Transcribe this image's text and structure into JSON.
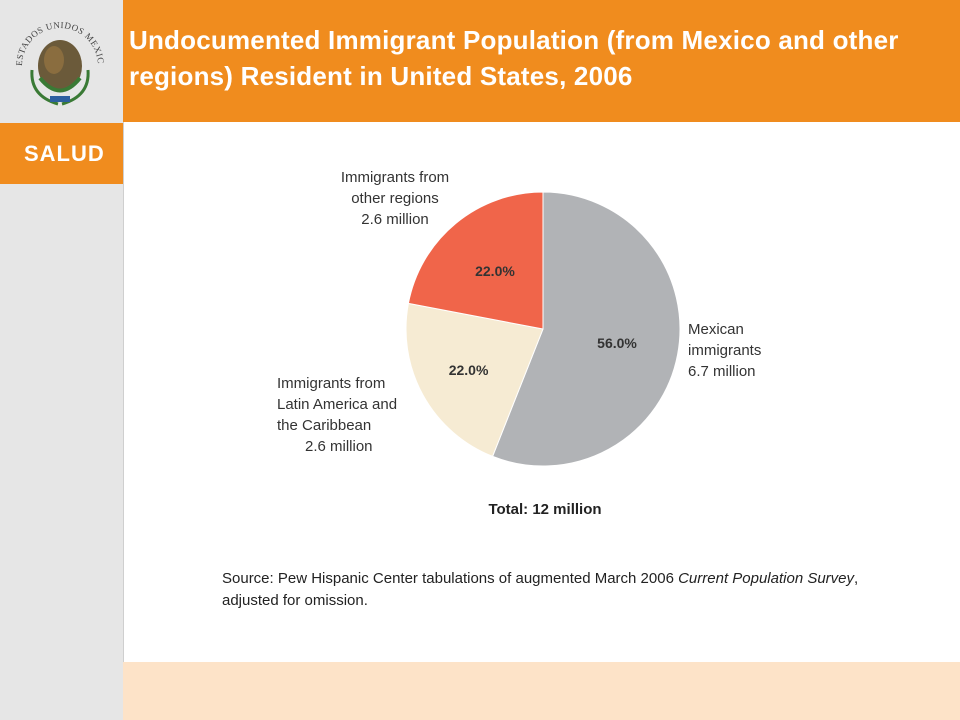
{
  "header": {
    "title": "Undocumented Immigrant Population (from Mexico and other regions) Resident in United States, 2006"
  },
  "sidebar": {
    "seal_text": "ESTADOS UNIDOS MEXICANOS",
    "section_label": "SALUD"
  },
  "colors": {
    "orange": "#f08c1e",
    "mexican": "#b1b3b6",
    "latin": "#f6ebd3",
    "other": "#f0654a",
    "footer": "#fde3c8"
  },
  "chart_data": {
    "type": "pie",
    "categories": [
      "Mexican immigrants",
      "Immigrants from Latin America and the Caribbean",
      "Immigrants from other regions"
    ],
    "values": [
      56.0,
      22.0,
      22.0
    ],
    "percent_labels": [
      "56.0%",
      "22.0%",
      "22.0%"
    ],
    "slice_labels": [
      [
        "Mexican",
        "immigrants",
        "6.7 million"
      ],
      [
        "Immigrants from",
        "Latin America and",
        "the Caribbean",
        "2.6 million"
      ],
      [
        "Immigrants from",
        "other regions",
        "2.6 million"
      ]
    ],
    "total_label": "Total: 12 million",
    "source": {
      "prefix": "Source: Pew Hispanic Center tabulations of augmented March 2006 ",
      "italic": "Current Population Survey",
      "suffix": ", adjusted for omission."
    }
  }
}
